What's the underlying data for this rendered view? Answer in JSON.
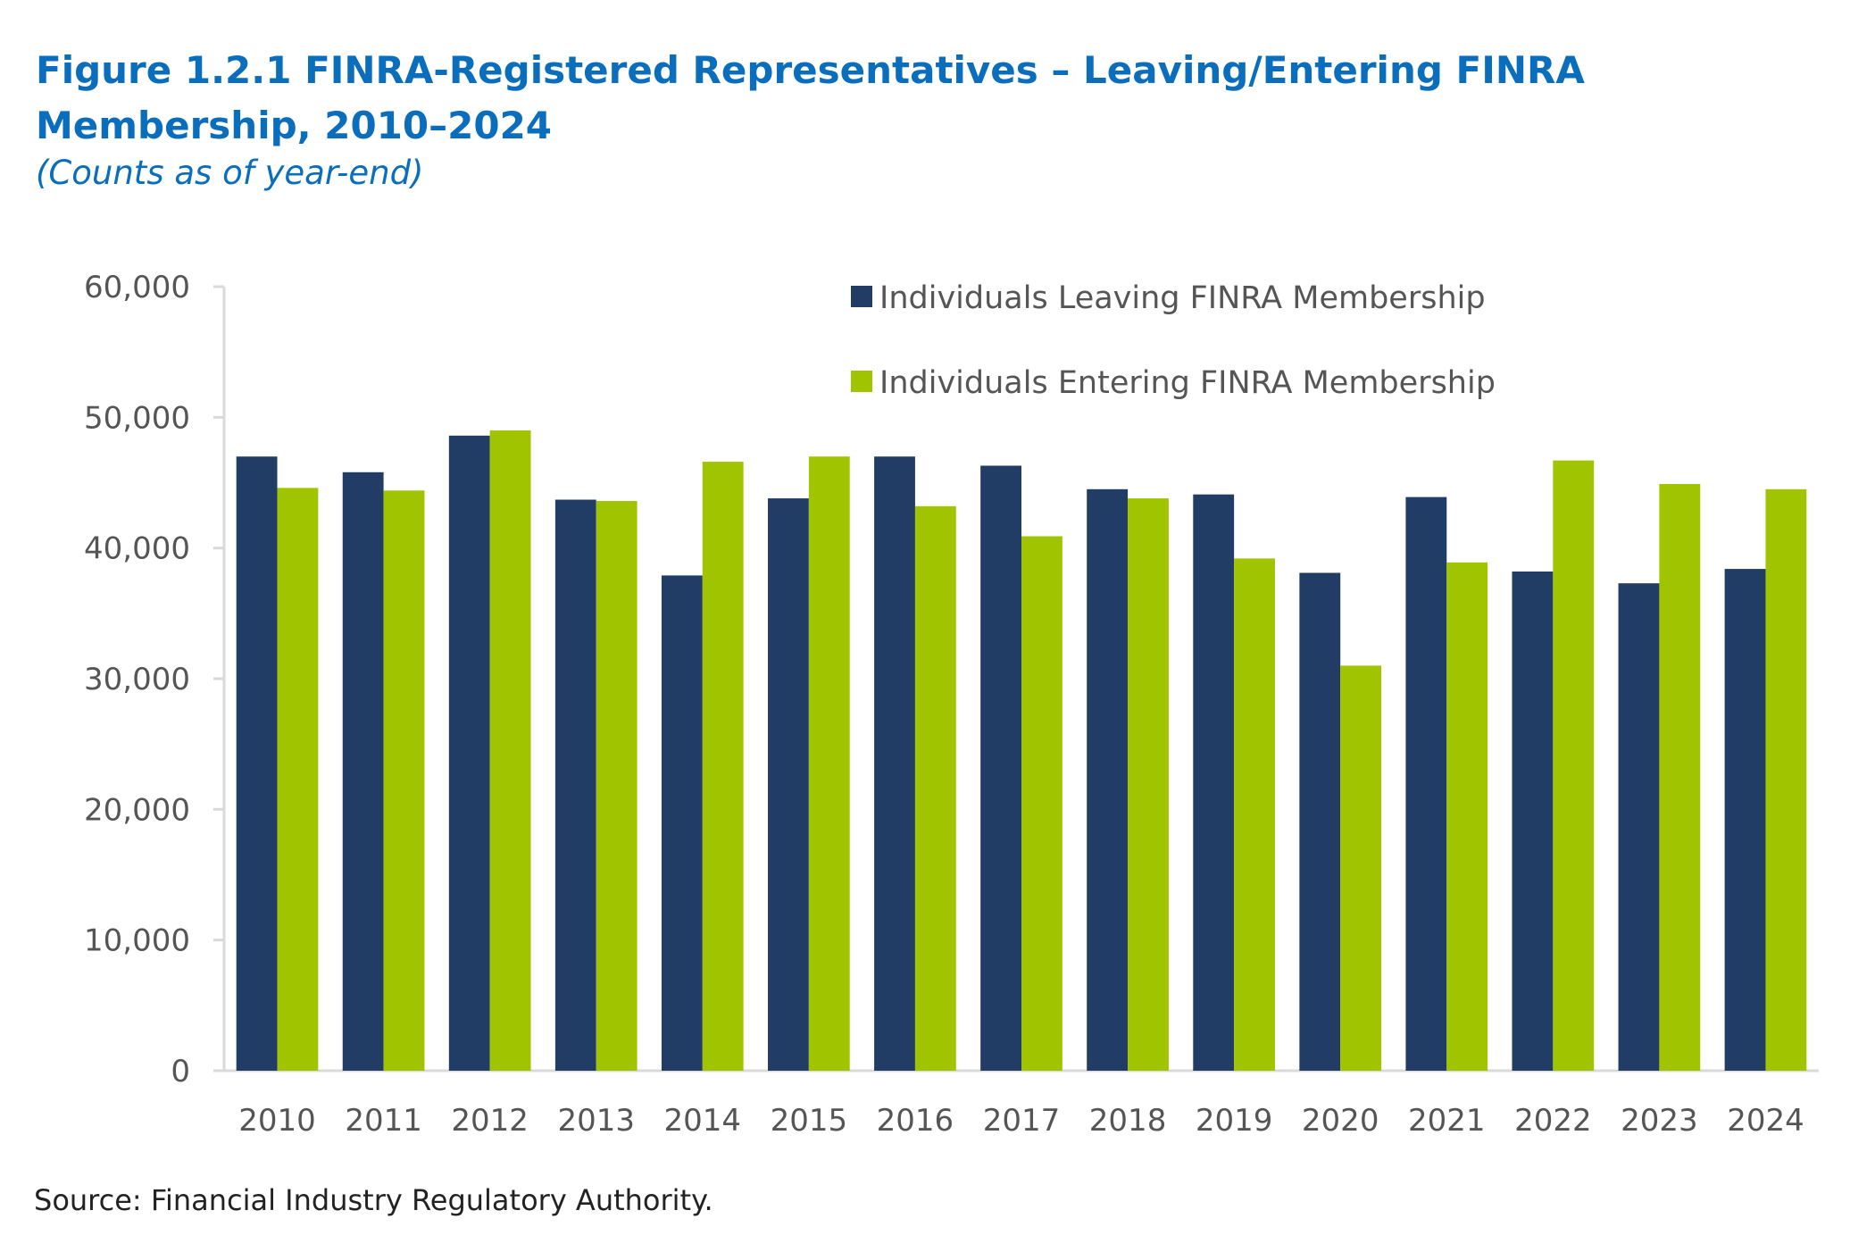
{
  "chart_data": {
    "type": "bar",
    "title": "Figure 1.2.1 FINRA-Registered Representatives – Leaving/Entering FINRA Membership, 2010–2024",
    "subtitle": "(Counts as of year-end)",
    "xlabel": "",
    "ylabel": "",
    "ylim": [
      0,
      60000
    ],
    "yticks": [
      0,
      10000,
      20000,
      30000,
      40000,
      50000,
      60000
    ],
    "ytick_labels": [
      "0",
      "10,000",
      "20,000",
      "30,000",
      "40,000",
      "50,000",
      "60,000"
    ],
    "grid": false,
    "legend_position": "top-right",
    "categories": [
      "2010",
      "2011",
      "2012",
      "2013",
      "2014",
      "2015",
      "2016",
      "2017",
      "2018",
      "2019",
      "2020",
      "2021",
      "2022",
      "2023",
      "2024"
    ],
    "series": [
      {
        "name": "Individuals Leaving FINRA Membership",
        "color": "#223d65",
        "values": [
          47000,
          45800,
          48600,
          43700,
          37900,
          43800,
          47000,
          46300,
          44500,
          44100,
          38100,
          43900,
          38200,
          37300,
          38400
        ]
      },
      {
        "name": "Individuals Entering FINRA Membership",
        "color": "#a0c400",
        "values": [
          44600,
          44400,
          49000,
          43600,
          46600,
          47000,
          43200,
          40900,
          43800,
          39200,
          31000,
          38900,
          46700,
          44900,
          44500
        ]
      }
    ],
    "source": "Source: Financial Industry Regulatory Authority."
  }
}
